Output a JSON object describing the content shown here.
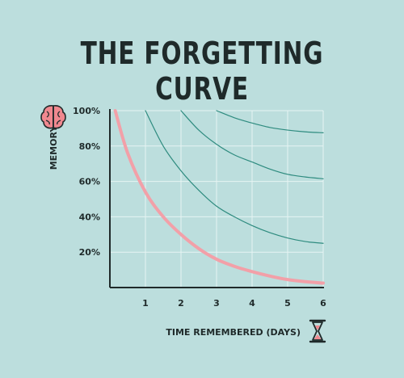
{
  "title": "THE FORGETTING CURVE",
  "colors": {
    "background": "#bcdedd",
    "grid": "#e6f4f3",
    "axis": "#1f2a2a",
    "initial_curve": "#f2a0a8",
    "review_curves": "#2e8b7f",
    "brain_icon": "#f0888f",
    "hourglass_frame": "#1f2a2a",
    "hourglass_sand": "#f0888f"
  },
  "icons": {
    "y_axis": "brain-icon",
    "x_axis": "hourglass-icon"
  },
  "chart_data": {
    "type": "line",
    "title": "THE FORGETTING CURVE",
    "xlabel": "TIME REMEMBERED (DAYS)",
    "ylabel": "MEMORY",
    "xlim": [
      0,
      6
    ],
    "ylim": [
      0,
      100
    ],
    "x_ticks": [
      "1",
      "2",
      "3",
      "4",
      "5",
      "6"
    ],
    "y_ticks": [
      "20%",
      "40%",
      "60%",
      "80%",
      "100%"
    ],
    "grid": true,
    "series": [
      {
        "points": [
          [
            0.15,
            100
          ],
          [
            0.5,
            76
          ],
          [
            1,
            54
          ],
          [
            1.5,
            40
          ],
          [
            2,
            30
          ],
          [
            2.5,
            22
          ],
          [
            3,
            16
          ],
          [
            3.5,
            12
          ],
          [
            4,
            9
          ],
          [
            4.5,
            6.5
          ],
          [
            5,
            4.5
          ],
          [
            5.5,
            3.3
          ],
          [
            6,
            2.5
          ]
        ]
      },
      {
        "points": [
          [
            1,
            100
          ],
          [
            1.5,
            80
          ],
          [
            2,
            66
          ],
          [
            2.5,
            55
          ],
          [
            3,
            46
          ],
          [
            3.5,
            40
          ],
          [
            4,
            35
          ],
          [
            4.5,
            31
          ],
          [
            5,
            28
          ],
          [
            5.5,
            26
          ],
          [
            6,
            25
          ]
        ]
      },
      {
        "points": [
          [
            2,
            100
          ],
          [
            2.5,
            89
          ],
          [
            3,
            81
          ],
          [
            3.5,
            75
          ],
          [
            4,
            71
          ],
          [
            4.5,
            67
          ],
          [
            5,
            64
          ],
          [
            5.5,
            62.5
          ],
          [
            6,
            61.5
          ]
        ]
      },
      {
        "points": [
          [
            3,
            100
          ],
          [
            3.5,
            96
          ],
          [
            4,
            93
          ],
          [
            4.5,
            90.5
          ],
          [
            5,
            89
          ],
          [
            5.5,
            88
          ],
          [
            6,
            87.5
          ]
        ]
      }
    ]
  }
}
